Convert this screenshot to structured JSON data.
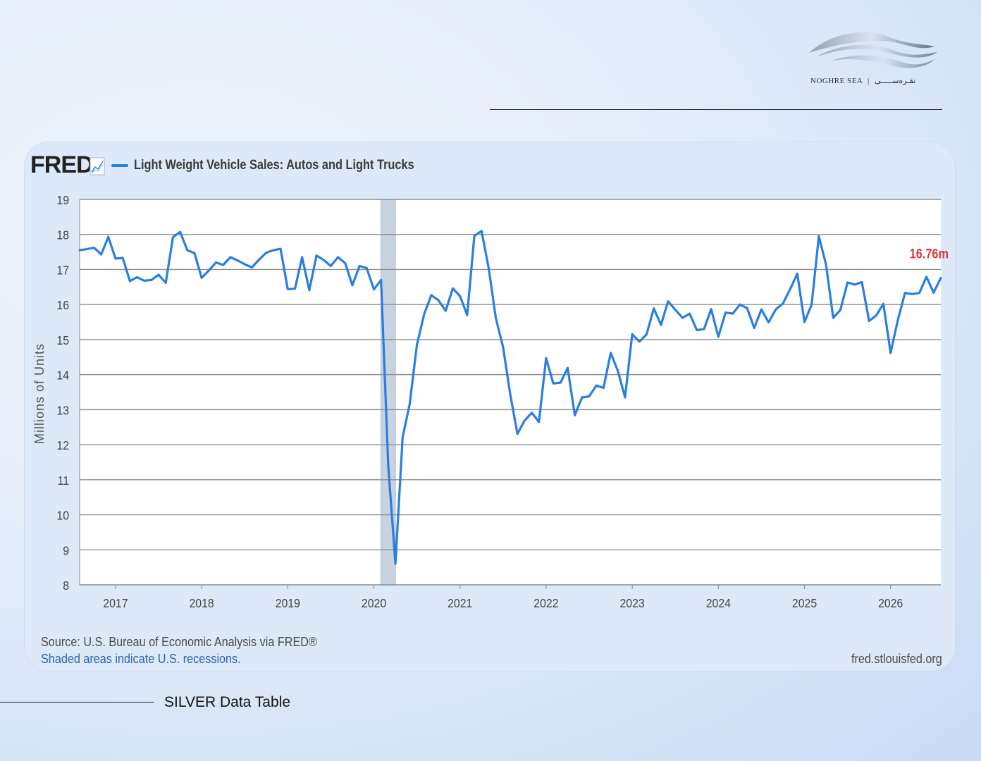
{
  "brand": {
    "name_latin": "NOGHRE SEA",
    "name_persian": "نقـره‌ســـــی"
  },
  "fred": {
    "brand": "FRED",
    "source_text": "Source: U.S. Bureau of Economic Analysis via FRED®",
    "shaded_note": "Shaded areas indicate U.S. recessions.",
    "url": "fred.stlouisfed.org"
  },
  "footer": {
    "title": "SILVER Data Table"
  },
  "colors": {
    "line": "#2a7ee0",
    "grid": "#8f8f8f",
    "recession": "#c9d3df",
    "latest_label": "#d43c3c"
  },
  "chart_data": {
    "type": "line",
    "title": "",
    "xlabel": "",
    "ylabel": "Millions of Units",
    "ylim": [
      8,
      19
    ],
    "yticks": [
      8,
      9,
      10,
      11,
      12,
      13,
      14,
      15,
      16,
      17,
      18,
      19
    ],
    "xticks": [
      "2017",
      "2018",
      "2019",
      "2020",
      "2021",
      "2022",
      "2023",
      "2024",
      "2025",
      "2026"
    ],
    "grid": true,
    "legend_position": "top-left",
    "recession": {
      "start": "2020-02",
      "end": "2020-04"
    },
    "latest_label": "16.76m",
    "series": [
      {
        "name": "Light Weight Vehicle Sales: Autos and Light Trucks",
        "start": "2016-08",
        "values": [
          17.55,
          17.58,
          17.62,
          17.43,
          17.93,
          17.31,
          17.33,
          16.67,
          16.78,
          16.68,
          16.7,
          16.85,
          16.62,
          17.92,
          18.07,
          17.55,
          17.47,
          16.76,
          16.97,
          17.2,
          17.13,
          17.35,
          17.26,
          17.15,
          17.06,
          17.28,
          17.48,
          17.55,
          17.59,
          16.44,
          16.45,
          17.35,
          16.41,
          17.4,
          17.27,
          17.1,
          17.35,
          17.18,
          16.55,
          17.1,
          17.04,
          16.43,
          16.7,
          11.4,
          8.6,
          12.21,
          13.17,
          14.85,
          15.72,
          16.27,
          16.12,
          15.82,
          16.46,
          16.24,
          15.7,
          17.96,
          18.1,
          17.03,
          15.61,
          14.79,
          13.44,
          12.31,
          12.69,
          12.91,
          12.65,
          14.47,
          13.75,
          13.77,
          14.19,
          12.84,
          13.35,
          13.38,
          13.69,
          13.62,
          14.62,
          14.1,
          13.35,
          15.15,
          14.94,
          15.15,
          15.89,
          15.42,
          16.09,
          15.85,
          15.62,
          15.74,
          15.27,
          15.3,
          15.87,
          15.08,
          15.77,
          15.74,
          16.0,
          15.9,
          15.33,
          15.86,
          15.49,
          15.86,
          16.03,
          16.44,
          16.88,
          15.5,
          16.0,
          17.95,
          17.14,
          15.62,
          15.84,
          16.63,
          16.57,
          16.64,
          15.53,
          15.69,
          16.02,
          14.62,
          15.55,
          16.33,
          16.3,
          16.33,
          16.79,
          16.34,
          16.76
        ]
      }
    ]
  }
}
